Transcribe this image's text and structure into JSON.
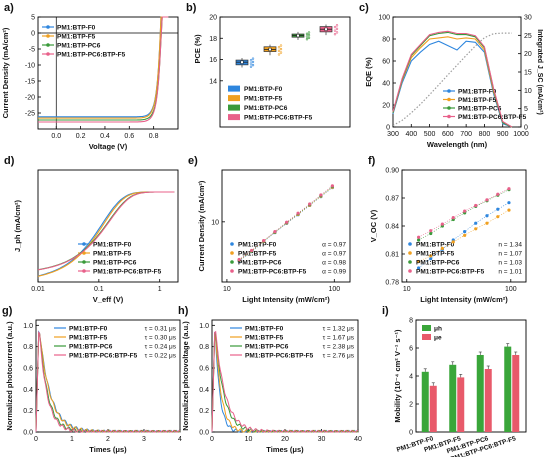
{
  "palette": {
    "F0": "#2e86de",
    "F5": "#f0a020",
    "PC6": "#3a9a3a",
    "PC6F5": "#e8608a",
    "ref": "#9e9e9e",
    "mu_h": "#3aa63a",
    "mu_e": "#e85a6a"
  },
  "chart_data": [
    {
      "id": "a",
      "type": "line",
      "panel_label": "a)",
      "xlabel": "Voltage (V)",
      "ylabel": "Current Density (mA/cm²)",
      "xlim": [
        -0.15,
        1.0
      ],
      "ylim": [
        -30,
        5
      ],
      "xticks": [
        "0.0",
        "0.2",
        "0.4",
        "0.6",
        "0.8"
      ],
      "xtick_values": [
        0,
        0.2,
        0.4,
        0.6,
        0.8
      ],
      "yticks": [
        "-25",
        "-20",
        "-15",
        "-10",
        "-5",
        "0",
        "5"
      ],
      "ytick_values": [
        -25,
        -20,
        -15,
        -10,
        -5,
        0,
        5
      ],
      "legend_position": "top-left",
      "series": [
        {
          "name": "PM1:BTP-F0",
          "color": "F0",
          "jsc": -26.2,
          "voc": 0.855
        },
        {
          "name": "PM1:BTP-F5",
          "color": "F5",
          "jsc": -26.6,
          "voc": 0.855
        },
        {
          "name": "PM1:BTP-PC6",
          "color": "PC6",
          "jsc": -27.2,
          "voc": 0.862
        },
        {
          "name": "PM1:BTP-PC6:BTP-F5",
          "color": "PC6F5",
          "jsc": -27.8,
          "voc": 0.862
        }
      ]
    },
    {
      "id": "b",
      "type": "box",
      "panel_label": "b)",
      "ylabel": "PCE (%)",
      "ylim": [
        14,
        20
      ],
      "yticks": [
        "14",
        "16",
        "18",
        "20"
      ],
      "ytick_values": [
        14,
        16,
        18,
        20
      ],
      "legend_position": "bottom",
      "series": [
        {
          "name": "PM1:BTP-F0",
          "color": "F0",
          "q1": 15.5,
          "median": 15.75,
          "q3": 15.95,
          "min": 15.25,
          "max": 16.15,
          "mean": 15.75
        },
        {
          "name": "PM1:BTP-F5",
          "color": "F5",
          "q1": 16.75,
          "median": 16.95,
          "q3": 17.2,
          "min": 16.4,
          "max": 17.4,
          "mean": 16.95
        },
        {
          "name": "PM1:BTP-PC6",
          "color": "PC6",
          "q1": 18.1,
          "median": 18.25,
          "q3": 18.4,
          "min": 17.85,
          "max": 18.6,
          "mean": 18.25
        },
        {
          "name": "PM1:BTP-PC6:BTP-F5",
          "color": "PC6F5",
          "q1": 18.6,
          "median": 18.85,
          "q3": 19.1,
          "min": 18.3,
          "max": 19.3,
          "mean": 18.85
        }
      ]
    },
    {
      "id": "c",
      "type": "line",
      "panel_label": "c)",
      "xlabel": "Wavelength (nm)",
      "ylabel": "EQE (%)",
      "ylabel_right": "Integrated J_SC (mA/cm²)",
      "xlim": [
        300,
        1000
      ],
      "ylim": [
        0,
        100
      ],
      "ylim_right": [
        0,
        30
      ],
      "xticks": [
        "300",
        "400",
        "500",
        "600",
        "700",
        "800",
        "900",
        "1000"
      ],
      "xtick_values": [
        300,
        400,
        500,
        600,
        700,
        800,
        900,
        1000
      ],
      "yticks": [
        "0",
        "20",
        "40",
        "60",
        "80",
        "100"
      ],
      "ytick_values": [
        0,
        20,
        40,
        60,
        80,
        100
      ],
      "yticks_right": [
        "0",
        "5",
        "10",
        "15",
        "20",
        "25",
        "30"
      ],
      "ytick_values_right": [
        0,
        5,
        10,
        15,
        20,
        25,
        30
      ],
      "legend_position": "bottom-right",
      "x": [
        300,
        350,
        400,
        450,
        500,
        550,
        600,
        650,
        700,
        750,
        800,
        850,
        900,
        950
      ],
      "series": [
        {
          "name": "PM1:BTP-F0",
          "color": "F0",
          "values": [
            12,
            40,
            60,
            68,
            75,
            78,
            74,
            70,
            78,
            77,
            68,
            30,
            3,
            0
          ]
        },
        {
          "name": "PM1:BTP-F5",
          "color": "F5",
          "values": [
            13,
            42,
            63,
            72,
            80,
            81,
            82,
            80,
            81,
            80,
            70,
            32,
            4,
            0
          ]
        },
        {
          "name": "PM1:BTP-PC6",
          "color": "PC6",
          "values": [
            13,
            43,
            65,
            74,
            83,
            85,
            86,
            84,
            84,
            82,
            72,
            34,
            4,
            0
          ]
        },
        {
          "name": "PM1:BTP-PC6:BTP-F5",
          "color": "PC6F5",
          "values": [
            14,
            44,
            66,
            75,
            84,
            86,
            87,
            85,
            85,
            83,
            73,
            35,
            5,
            0
          ]
        }
      ]
    },
    {
      "id": "d",
      "type": "line",
      "panel_label": "d)",
      "xlabel": "V_eff (V)",
      "ylabel": "J_ph (mA/cm²)",
      "xscale": "log",
      "yscale": "log",
      "xlim": [
        0.01,
        2
      ],
      "xticks": [
        "0.01",
        "0.1",
        "1"
      ],
      "xtick_values": [
        0.01,
        0.1,
        1
      ],
      "legend_position": "bottom-right",
      "series": [
        {
          "name": "PM1:BTP-F0",
          "color": "F0"
        },
        {
          "name": "PM1:BTP-F5",
          "color": "F5"
        },
        {
          "name": "PM1:BTP-PC6",
          "color": "PC6"
        },
        {
          "name": "PM1:BTP-PC6:BTP-F5",
          "color": "PC6F5"
        }
      ]
    },
    {
      "id": "e",
      "type": "scatter",
      "panel_label": "e)",
      "xlabel": "Light Intensity (mW/cm²)",
      "ylabel": "Current Density (mA/cm²)",
      "xscale": "log",
      "yscale": "log",
      "xlim": [
        9,
        140
      ],
      "ylim": [
        2,
        40
      ],
      "xticks": [
        "10",
        "100"
      ],
      "xtick_values": [
        10,
        100
      ],
      "yticks": [
        "10"
      ],
      "ytick_values": [
        10
      ],
      "legend_position": "bottom-right",
      "x": [
        13,
        17,
        22,
        28,
        36,
        46,
        59,
        75,
        96
      ],
      "series": [
        {
          "name": "PM1:BTP-F0",
          "color": "F0",
          "alpha": "α = 0.97",
          "values": [
            3.5,
            4.5,
            5.9,
            7.5,
            9.6,
            12.1,
            15.5,
            19.6,
            25.0
          ]
        },
        {
          "name": "PM1:BTP-F5",
          "color": "F5",
          "alpha": "α = 0.97",
          "values": [
            3.55,
            4.55,
            5.95,
            7.55,
            9.7,
            12.2,
            15.6,
            19.8,
            25.2
          ]
        },
        {
          "name": "PM1:BTP-PC6",
          "color": "PC6",
          "alpha": "α = 0.98",
          "values": [
            3.6,
            4.6,
            6.0,
            7.6,
            9.8,
            12.4,
            15.9,
            20.1,
            25.7
          ]
        },
        {
          "name": "PM1:BTP-PC6:BTP-F5",
          "color": "PC6F5",
          "alpha": "α = 0.99",
          "values": [
            3.65,
            4.65,
            6.05,
            7.7,
            9.9,
            12.6,
            16.1,
            20.5,
            26.2
          ]
        }
      ]
    },
    {
      "id": "f",
      "type": "scatter",
      "panel_label": "f)",
      "xlabel": "Light Intensity (mW/cm²)",
      "ylabel": "V_OC (V)",
      "xscale": "log",
      "xlim": [
        9,
        140
      ],
      "ylim": [
        0.78,
        0.9
      ],
      "xticks": [
        "10",
        "100"
      ],
      "xtick_values": [
        10,
        100
      ],
      "yticks": [
        "0.78",
        "0.81",
        "0.84",
        "0.87",
        "0.90"
      ],
      "ytick_values": [
        0.78,
        0.81,
        0.84,
        0.87,
        0.9
      ],
      "legend_position": "bottom-right",
      "x": [
        13,
        17,
        22,
        28,
        36,
        46,
        59,
        75,
        96
      ],
      "series": [
        {
          "name": "PM1:BTP-F0",
          "color": "F0",
          "n": "n = 1.34",
          "values": [
            0.795,
            0.805,
            0.815,
            0.825,
            0.834,
            0.843,
            0.851,
            0.858,
            0.865
          ]
        },
        {
          "name": "PM1:BTP-F5",
          "color": "F5",
          "n": "n = 1.07",
          "values": [
            0.802,
            0.808,
            0.816,
            0.823,
            0.83,
            0.837,
            0.843,
            0.85,
            0.857
          ]
        },
        {
          "name": "PM1:BTP-PC6",
          "color": "PC6",
          "n": "n = 1.03",
          "values": [
            0.825,
            0.832,
            0.84,
            0.847,
            0.854,
            0.861,
            0.867,
            0.873,
            0.879
          ]
        },
        {
          "name": "PM1:BTP-PC6:BTP-F5",
          "color": "PC6F5",
          "n": "n = 1.01",
          "values": [
            0.828,
            0.835,
            0.842,
            0.849,
            0.856,
            0.862,
            0.868,
            0.874,
            0.88
          ]
        }
      ]
    },
    {
      "id": "g",
      "type": "line",
      "panel_label": "g)",
      "xlabel": "Times (μs)",
      "ylabel": "Normalized photocurrent (a.u.)",
      "xlim": [
        0,
        4
      ],
      "ylim": [
        0,
        1.05
      ],
      "xticks": [
        "0",
        "1",
        "2",
        "3",
        "4"
      ],
      "xtick_values": [
        0,
        1,
        2,
        3,
        4
      ],
      "yticks": [
        "0.0",
        "0.2",
        "0.4",
        "0.6",
        "0.8",
        "1.0"
      ],
      "ytick_values": [
        0,
        0.2,
        0.4,
        0.6,
        0.8,
        1.0
      ],
      "legend_position": "top-right",
      "series": [
        {
          "name": "PM1:BTP-F0",
          "color": "F0",
          "tau_label": "τ = 0.31 μs",
          "tau": 0.31
        },
        {
          "name": "PM1:BTP-F5",
          "color": "F5",
          "tau_label": "τ = 0.30 μs",
          "tau": 0.3
        },
        {
          "name": "PM1:BTP-PC6",
          "color": "PC6",
          "tau_label": "τ = 0.24 μs",
          "tau": 0.24
        },
        {
          "name": "PM1:BTP-PC6:BTP-F5",
          "color": "PC6F5",
          "tau_label": "τ = 0.22 μs",
          "tau": 0.22
        }
      ]
    },
    {
      "id": "h",
      "type": "line",
      "panel_label": "h)",
      "xlabel": "Times (μs)",
      "ylabel": "Normalized photovoltage (a.u.)",
      "xlim": [
        0,
        40
      ],
      "ylim": [
        0,
        1.05
      ],
      "xticks": [
        "0",
        "10",
        "20",
        "30",
        "40"
      ],
      "xtick_values": [
        0,
        10,
        20,
        30,
        40
      ],
      "yticks": [
        "0.0",
        "0.2",
        "0.4",
        "0.6",
        "0.8",
        "1.0"
      ],
      "ytick_values": [
        0,
        0.2,
        0.4,
        0.6,
        0.8,
        1.0
      ],
      "legend_position": "top-right",
      "series": [
        {
          "name": "PM1:BTP-F0",
          "color": "F0",
          "tau_label": "τ = 1.32 μs",
          "tau": 1.32
        },
        {
          "name": "PM1:BTP-F5",
          "color": "F5",
          "tau_label": "τ = 1.67 μs",
          "tau": 1.67
        },
        {
          "name": "PM1:BTP-PC6",
          "color": "PC6",
          "tau_label": "τ = 2.38 μs",
          "tau": 2.38
        },
        {
          "name": "PM1:BTP-PC6:BTP-F5",
          "color": "PC6F5",
          "tau_label": "τ = 2.76 μs",
          "tau": 2.76
        }
      ]
    },
    {
      "id": "i",
      "type": "bar",
      "panel_label": "i)",
      "ylabel": "Mobility (10⁻⁴ cm² V⁻¹ s⁻¹)",
      "ylim": [
        0,
        8
      ],
      "yticks": [
        "0",
        "2",
        "4",
        "6",
        "8"
      ],
      "ytick_values": [
        0,
        2,
        4,
        6,
        8
      ],
      "legend_position": "top-left",
      "categories": [
        "PM1:BTP-F0",
        "PM1:BTP-F5",
        "PM1:BTP-PC6",
        "PM1:BTP-PC6:BTP-F5"
      ],
      "series": [
        {
          "name": "μh",
          "color": "mu_h",
          "values": [
            4.3,
            4.8,
            5.5,
            6.1
          ]
        },
        {
          "name": "μe",
          "color": "mu_e",
          "values": [
            3.3,
            3.9,
            4.5,
            5.5
          ]
        }
      ]
    }
  ]
}
